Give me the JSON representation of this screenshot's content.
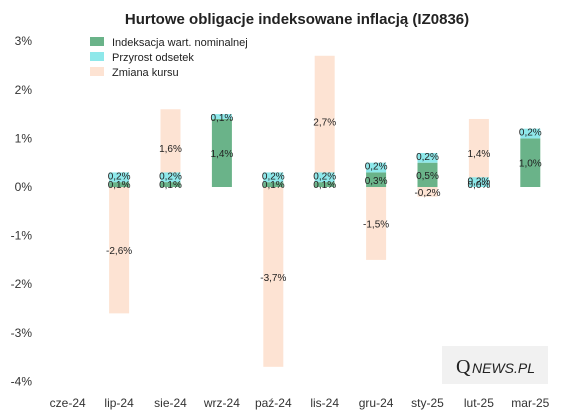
{
  "chart_data": {
    "type": "bar",
    "title": "Hurtowe obligacje indeksowane inflacją (IZ0836)",
    "categories": [
      "cze-24",
      "lip-24",
      "sie-24",
      "wrz-24",
      "paź-24",
      "lis-24",
      "gru-24",
      "sty-25",
      "lut-25",
      "mar-25"
    ],
    "ylim": [
      -4,
      3
    ],
    "yticks": [
      "-4%",
      "-3%",
      "-2%",
      "-1%",
      "0%",
      "1%",
      "2%",
      "3%"
    ],
    "grid": false,
    "legend_position": "top-left",
    "series": [
      {
        "name": "Indeksacja wart. nominalnej",
        "color": "#6ab389",
        "values": [
          null,
          0.1,
          0.1,
          1.4,
          0.1,
          0.1,
          0.3,
          0.5,
          0.0,
          1.0
        ],
        "labels": [
          "",
          "0,1%",
          "0,1%",
          "1,4%",
          "0,1%",
          "0,1%",
          "0,3%",
          "0,5%",
          "0,0%",
          "1,0%"
        ]
      },
      {
        "name": "Przyrost odsetek",
        "color": "#8ee8ea",
        "values": [
          null,
          0.2,
          0.2,
          0.1,
          0.2,
          0.2,
          0.2,
          0.2,
          0.2,
          0.2
        ],
        "labels": [
          "",
          "0,2%",
          "0,2%",
          "0,1%",
          "0,2%",
          "0,2%",
          "0,2%",
          "0,2%",
          "0,2%",
          "0,2%"
        ]
      },
      {
        "name": "Zmiana kursu",
        "color": "#fde3d3",
        "values": [
          null,
          -2.6,
          1.6,
          null,
          -3.7,
          2.7,
          -1.5,
          -0.2,
          1.4,
          null
        ],
        "labels": [
          "",
          "-2,6%",
          "1,6%",
          "",
          "-3,7%",
          "2,7%",
          "-1,5%",
          "-0,2%",
          "1,4%",
          ""
        ]
      }
    ]
  },
  "logo": {
    "q": "Q",
    "rest": "NEWS.PL"
  }
}
